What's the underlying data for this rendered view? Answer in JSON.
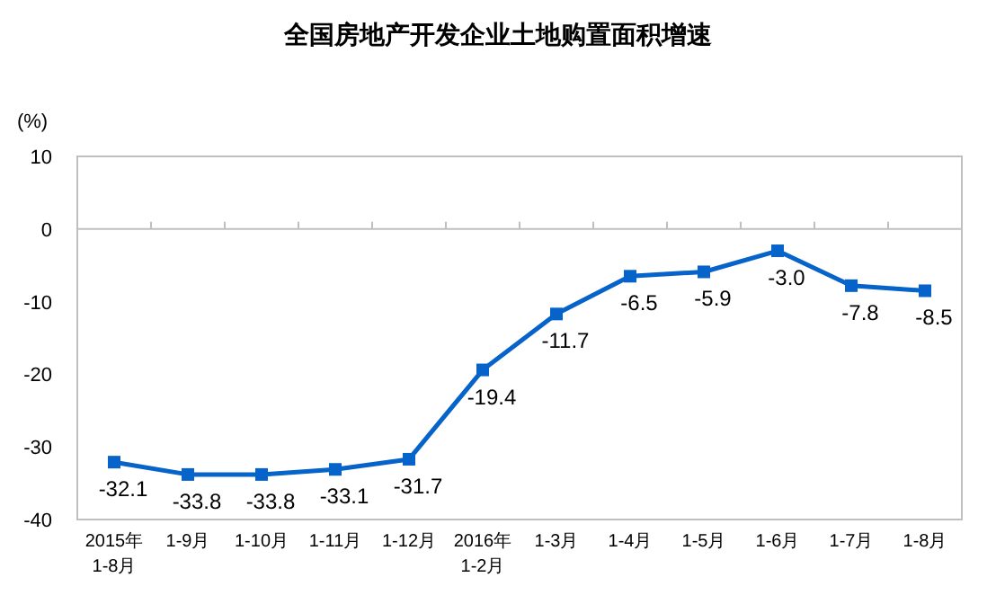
{
  "chart_data": {
    "type": "line",
    "title": "全国房地产开发企业土地购置面积增速",
    "ylabel": "(%)",
    "categories": [
      "2015年\n1-8月",
      "1-9月",
      "1-10月",
      "1-11月",
      "1-12月",
      "2016年\n1-2月",
      "1-3月",
      "1-4月",
      "1-5月",
      "1-6月",
      "1-7月",
      "1-8月"
    ],
    "series": [
      {
        "color": "#0563c9",
        "values": [
          -32.1,
          -33.8,
          -33.8,
          -33.1,
          -31.7,
          -19.4,
          -11.7,
          -6.5,
          -5.9,
          -3.0,
          -7.8,
          -8.5
        ]
      }
    ],
    "value_labels": [
      "-32.1",
      "-33.8",
      "-33.8",
      "-33.1",
      "-31.7",
      "-19.4",
      "-11.7",
      "-6.5",
      "-5.9",
      "-3.0",
      "-7.8",
      "-8.5"
    ],
    "ylim": [
      -40,
      10
    ],
    "yticks": [
      -40,
      -30,
      -20,
      -10,
      0,
      10
    ],
    "marker": "square",
    "line_style": "solid"
  }
}
